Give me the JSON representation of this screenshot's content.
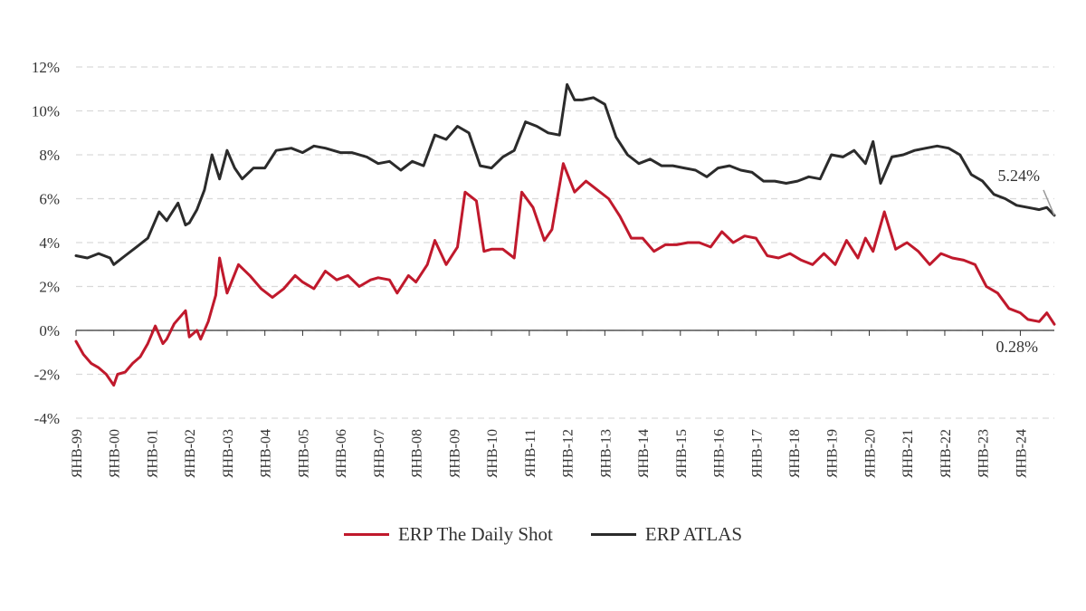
{
  "chart_data": {
    "type": "line",
    "title": "",
    "xlabel": "",
    "ylabel": "",
    "ylim": [
      -4,
      12
    ],
    "y_ticks": [
      "-4%",
      "-2%",
      "0%",
      "2%",
      "4%",
      "6%",
      "8%",
      "10%",
      "12%"
    ],
    "y_tick_values": [
      -4,
      -2,
      0,
      2,
      4,
      6,
      8,
      10,
      12
    ],
    "x_range": [
      1999.0,
      2024.9
    ],
    "x_tick_labels": [
      "ЯНВ-99",
      "ЯНВ-00",
      "ЯНВ-01",
      "ЯНВ-02",
      "ЯНВ-03",
      "ЯНВ-04",
      "ЯНВ-05",
      "ЯНВ-06",
      "ЯНВ-07",
      "ЯНВ-08",
      "ЯНВ-09",
      "ЯНВ-10",
      "ЯНВ-11",
      "ЯНВ-12",
      "ЯНВ-13",
      "ЯНВ-14",
      "ЯНВ-15",
      "ЯНВ-16",
      "ЯНВ-17",
      "ЯНВ-18",
      "ЯНВ-19",
      "ЯНВ-20",
      "ЯНВ-21",
      "ЯНВ-22",
      "ЯНВ-23",
      "ЯНВ-24"
    ],
    "x_tick_years": [
      1999,
      2000,
      2001,
      2002,
      2003,
      2004,
      2005,
      2006,
      2007,
      2008,
      2009,
      2010,
      2011,
      2012,
      2013,
      2014,
      2015,
      2016,
      2017,
      2018,
      2019,
      2020,
      2021,
      2022,
      2023,
      2024
    ],
    "grid": "horizontal dashed",
    "legend_position": "bottom",
    "series": [
      {
        "name": "ERP The Daily Shot",
        "color": "#c0192c",
        "x": [
          1999.0,
          1999.2,
          1999.4,
          1999.6,
          1999.8,
          2000.0,
          2000.1,
          2000.3,
          2000.5,
          2000.7,
          2000.9,
          2001.1,
          2001.3,
          2001.4,
          2001.6,
          2001.9,
          2002.0,
          2002.2,
          2002.3,
          2002.5,
          2002.7,
          2002.8,
          2003.0,
          2003.3,
          2003.6,
          2003.9,
          2004.2,
          2004.5,
          2004.8,
          2005.0,
          2005.3,
          2005.6,
          2005.9,
          2006.2,
          2006.5,
          2006.8,
          2007.0,
          2007.3,
          2007.5,
          2007.8,
          2008.0,
          2008.3,
          2008.5,
          2008.8,
          2009.1,
          2009.3,
          2009.6,
          2009.8,
          2010.0,
          2010.3,
          2010.6,
          2010.8,
          2011.1,
          2011.4,
          2011.6,
          2011.9,
          2012.2,
          2012.5,
          2012.8,
          2013.1,
          2013.4,
          2013.7,
          2014.0,
          2014.3,
          2014.6,
          2014.9,
          2015.2,
          2015.5,
          2015.8,
          2016.1,
          2016.4,
          2016.7,
          2017.0,
          2017.3,
          2017.6,
          2017.9,
          2018.2,
          2018.5,
          2018.8,
          2019.1,
          2019.4,
          2019.7,
          2019.9,
          2020.1,
          2020.4,
          2020.7,
          2021.0,
          2021.3,
          2021.6,
          2021.9,
          2022.2,
          2022.5,
          2022.8,
          2023.1,
          2023.4,
          2023.7,
          2024.0,
          2024.2,
          2024.5,
          2024.7,
          2024.9
        ],
        "values": [
          -0.5,
          -1.1,
          -1.5,
          -1.7,
          -2.0,
          -2.5,
          -2.0,
          -1.9,
          -1.5,
          -1.2,
          -0.6,
          0.2,
          -0.6,
          -0.4,
          0.3,
          0.9,
          -0.3,
          0.0,
          -0.4,
          0.4,
          1.6,
          3.3,
          1.7,
          3.0,
          2.5,
          1.9,
          1.5,
          1.9,
          2.5,
          2.2,
          1.9,
          2.7,
          2.3,
          2.5,
          2.0,
          2.3,
          2.4,
          2.3,
          1.7,
          2.5,
          2.2,
          3.0,
          4.1,
          3.0,
          3.8,
          6.3,
          5.9,
          3.6,
          3.7,
          3.7,
          3.3,
          6.3,
          5.6,
          4.1,
          4.6,
          7.6,
          6.3,
          6.8,
          6.4,
          6.0,
          5.2,
          4.2,
          4.2,
          3.6,
          3.9,
          3.9,
          4.0,
          4.0,
          3.8,
          4.5,
          4.0,
          4.3,
          4.2,
          3.4,
          3.3,
          3.5,
          3.2,
          3.0,
          3.5,
          3.0,
          4.1,
          3.3,
          4.2,
          3.6,
          5.4,
          3.7,
          4.0,
          3.6,
          3.0,
          3.5,
          3.3,
          3.2,
          3.0,
          2.0,
          1.7,
          1.0,
          0.8,
          0.5,
          0.4,
          0.8,
          0.28
        ]
      },
      {
        "name": "ERP ATLAS",
        "color": "#2b2b2b",
        "x": [
          1999.0,
          1999.3,
          1999.6,
          1999.9,
          2000.0,
          2000.3,
          2000.6,
          2000.9,
          2001.2,
          2001.4,
          2001.7,
          2001.9,
          2002.0,
          2002.2,
          2002.4,
          2002.6,
          2002.8,
          2003.0,
          2003.2,
          2003.4,
          2003.7,
          2004.0,
          2004.3,
          2004.7,
          2005.0,
          2005.3,
          2005.6,
          2006.0,
          2006.3,
          2006.7,
          2007.0,
          2007.3,
          2007.6,
          2007.9,
          2008.2,
          2008.5,
          2008.8,
          2009.1,
          2009.4,
          2009.7,
          2010.0,
          2010.3,
          2010.6,
          2010.9,
          2011.2,
          2011.5,
          2011.8,
          2012.0,
          2012.2,
          2012.4,
          2012.7,
          2013.0,
          2013.3,
          2013.6,
          2013.9,
          2014.2,
          2014.5,
          2014.8,
          2015.1,
          2015.4,
          2015.7,
          2016.0,
          2016.3,
          2016.6,
          2016.9,
          2017.2,
          2017.5,
          2017.8,
          2018.1,
          2018.4,
          2018.7,
          2019.0,
          2019.3,
          2019.6,
          2019.9,
          2020.1,
          2020.3,
          2020.6,
          2020.9,
          2021.2,
          2021.5,
          2021.8,
          2022.1,
          2022.4,
          2022.7,
          2023.0,
          2023.3,
          2023.6,
          2023.9,
          2024.2,
          2024.5,
          2024.7,
          2024.9
        ],
        "values": [
          3.4,
          3.3,
          3.5,
          3.3,
          3.0,
          3.4,
          3.8,
          4.2,
          5.4,
          5.0,
          5.8,
          4.8,
          4.9,
          5.5,
          6.4,
          8.0,
          6.9,
          8.2,
          7.4,
          6.9,
          7.4,
          7.4,
          8.2,
          8.3,
          8.1,
          8.4,
          8.3,
          8.1,
          8.1,
          7.9,
          7.6,
          7.7,
          7.3,
          7.7,
          7.5,
          8.9,
          8.7,
          9.3,
          9.0,
          7.5,
          7.4,
          7.9,
          8.2,
          9.5,
          9.3,
          9.0,
          8.9,
          11.2,
          10.5,
          10.5,
          10.6,
          10.3,
          8.8,
          8.0,
          7.6,
          7.8,
          7.5,
          7.5,
          7.4,
          7.3,
          7.0,
          7.4,
          7.5,
          7.3,
          7.2,
          6.8,
          6.8,
          6.7,
          6.8,
          7.0,
          6.9,
          8.0,
          7.9,
          8.2,
          7.6,
          8.6,
          6.7,
          7.9,
          8.0,
          8.2,
          8.3,
          8.4,
          8.3,
          8.0,
          7.1,
          6.8,
          6.2,
          6.0,
          5.7,
          5.6,
          5.5,
          5.6,
          5.24
        ]
      }
    ],
    "annotations": [
      {
        "text": "5.24%",
        "series": "ERP ATLAS",
        "x": 2024.9,
        "y": 5.24
      },
      {
        "text": "0.28%",
        "series": "ERP The Daily Shot",
        "x": 2024.9,
        "y": 0.28
      }
    ]
  }
}
